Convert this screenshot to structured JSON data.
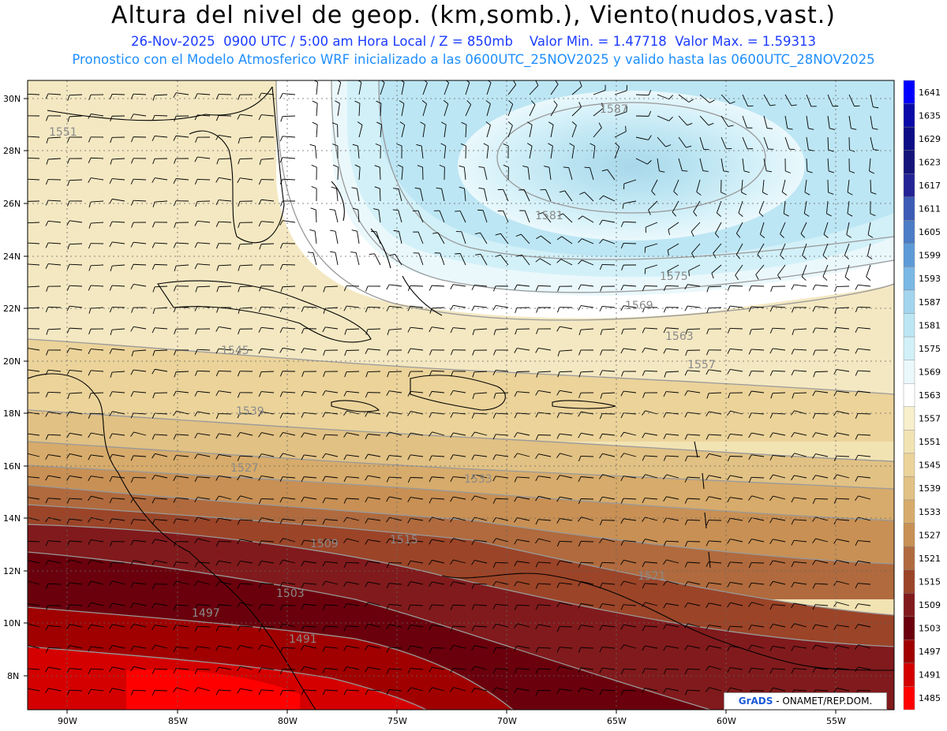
{
  "title": "Altura del nivel de geop. (km,somb.), Viento(nudos,vast.)",
  "subtitle1": "26-Nov-2025  0900 UTC / 5:00 am Hora Local / Z = 850mb    Valor Min. = 1.47718  Valor Max. = 1.59313",
  "subtitle2": "Pronostico con el Modelo Atmosferico WRF inicializado a las 0600UTC_25NOV2025 y valido hasta las  0600UTC_28NOV2025",
  "lat_labels": [
    "30N",
    "28N",
    "26N",
    "24N",
    "22N",
    "20N",
    "18N",
    "16N",
    "14N",
    "12N",
    "10N",
    "8N"
  ],
  "lon_labels": [
    "90W",
    "85W",
    "80W",
    "75W",
    "70W",
    "65W",
    "60W",
    "55W"
  ],
  "colorbar": {
    "levels": [
      "1641",
      "1635",
      "1629",
      "1623",
      "1617",
      "1611",
      "1605",
      "1599",
      "1593",
      "1587",
      "1581",
      "1575",
      "1569",
      "1563",
      "1557",
      "1551",
      "1545",
      "1539",
      "1533",
      "1527",
      "1521",
      "1515",
      "1509",
      "1503",
      "1497",
      "1491",
      "1485"
    ],
    "colors": [
      "#0000ff",
      "#0a0aa8",
      "#0d0d85",
      "#14147a",
      "#232396",
      "#3c5cb5",
      "#4b7cc6",
      "#5d9bd8",
      "#7ab8e6",
      "#a3d5ee",
      "#bde6f4",
      "#d2f0f8",
      "#eaf8fc",
      "#ffffff",
      "#f7efcc",
      "#f2e3b3",
      "#ebd39a",
      "#e1c184",
      "#d7ab6b",
      "#c89054",
      "#b06a3d",
      "#9b4428",
      "#811a1c",
      "#6a000c",
      "#a00000",
      "#d40000",
      "#ff0000"
    ]
  },
  "contour_labels": [
    "1587",
    "1581",
    "1575",
    "1569",
    "1563",
    "1557",
    "1551",
    "1545",
    "1539",
    "1533",
    "1527",
    "1521",
    "1515",
    "1509",
    "1503",
    "1497",
    "1491"
  ],
  "credit": {
    "logo": "GrADS",
    "text": "- ONAMET/REP.DOM."
  }
}
